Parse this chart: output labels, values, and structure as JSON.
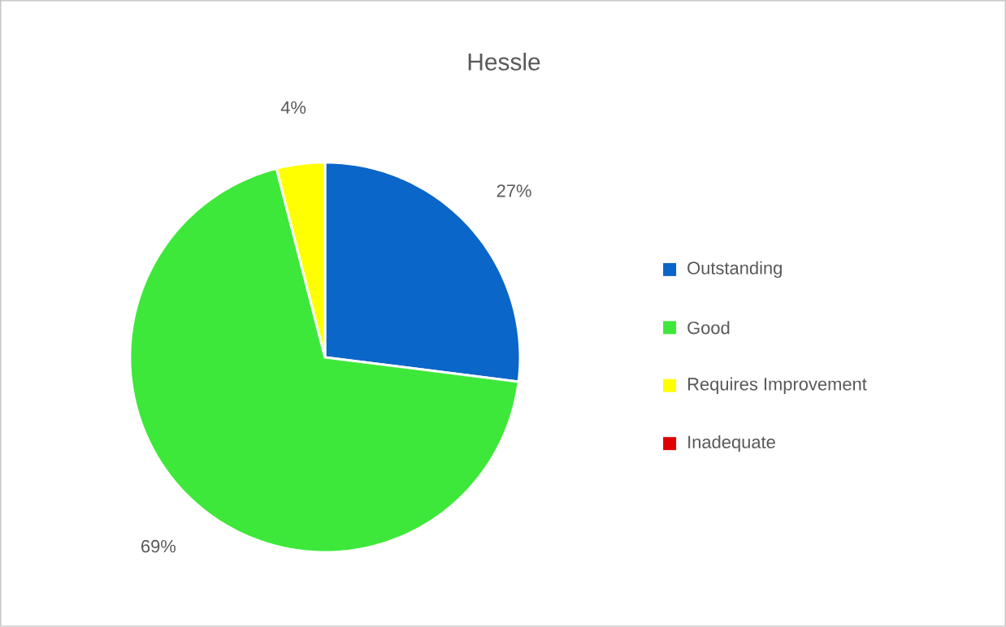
{
  "chart_data": {
    "type": "pie",
    "title": "Hessle",
    "categories": [
      "Outstanding",
      "Good",
      "Requires Improvement",
      "Inadequate"
    ],
    "values": [
      27,
      69,
      4,
      0
    ],
    "colors": [
      "#0a66c8",
      "#3ee83a",
      "#ffff00",
      "#e00000"
    ],
    "value_labels": [
      "27%",
      "69%",
      "4%",
      null
    ],
    "legend": "right"
  }
}
